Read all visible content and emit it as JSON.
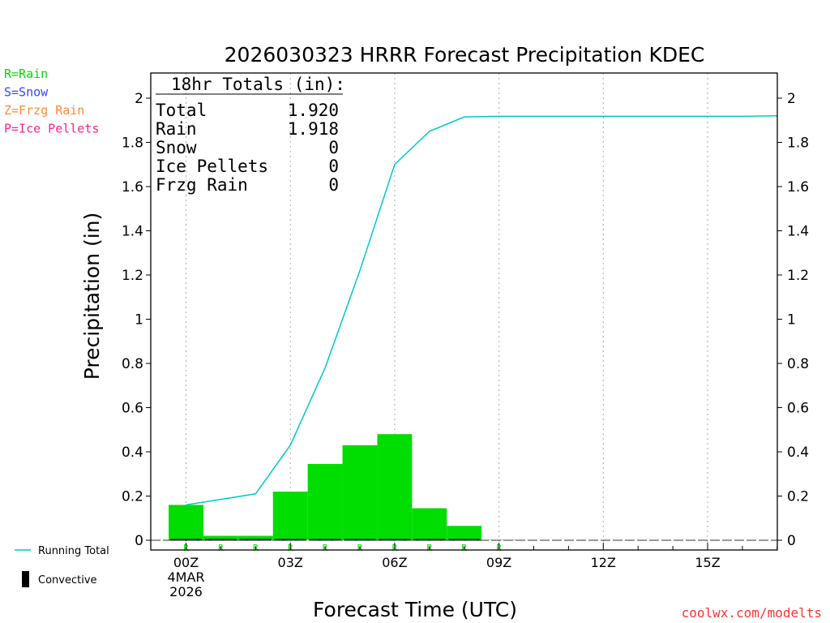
{
  "chart_data": {
    "type": "bar",
    "title": "2026030323 HRRR Forecast Precipitation KDEC",
    "xlabel": "Forecast Time (UTC)",
    "ylabel": "Precipitation (in)",
    "ylim": [
      0,
      2.1
    ],
    "xlim": [
      -1,
      17
    ],
    "y_ticks": [
      0,
      0.2,
      0.4,
      0.6,
      0.8,
      1,
      1.2,
      1.4,
      1.6,
      1.8,
      2
    ],
    "y_tick_labels": [
      "0",
      "0.2",
      "0.4",
      "0.6",
      "0.8",
      "1",
      "1.2",
      "1.4",
      "1.6",
      "1.8",
      "2"
    ],
    "x_ticks": [
      {
        "hour": 0,
        "lines": [
          "00Z",
          "4MAR",
          "2026"
        ]
      },
      {
        "hour": 3,
        "lines": [
          "03Z"
        ]
      },
      {
        "hour": 6,
        "lines": [
          "06Z"
        ]
      },
      {
        "hour": 9,
        "lines": [
          "09Z"
        ]
      },
      {
        "hour": 12,
        "lines": [
          "12Z"
        ]
      },
      {
        "hour": 15,
        "lines": [
          "15Z"
        ]
      }
    ],
    "grid": "vertical dotted at 3-hour ticks",
    "hourly_bars": {
      "x": [
        0,
        1,
        2,
        3,
        4,
        5,
        6,
        7,
        8,
        9
      ],
      "values": [
        0.16,
        0.02,
        0.02,
        0.22,
        0.345,
        0.43,
        0.48,
        0.145,
        0.065,
        0.002
      ],
      "type_codes": [
        "R",
        "R",
        "R",
        "R",
        "R",
        "R",
        "R",
        "R",
        "R",
        "R"
      ],
      "color": "#00dd00"
    },
    "running_total": {
      "name": "Running Total",
      "x": [
        0,
        1,
        2,
        3,
        4,
        5,
        6,
        7,
        8,
        9,
        10,
        11,
        12,
        13,
        14,
        15,
        16,
        17
      ],
      "values": [
        0.16,
        0.185,
        0.21,
        0.43,
        0.78,
        1.22,
        1.7,
        1.85,
        1.915,
        1.918,
        1.918,
        1.918,
        1.918,
        1.918,
        1.918,
        1.918,
        1.918,
        1.92
      ],
      "color": "#00c8c8"
    },
    "convective": {
      "name": "Convective",
      "x": [
        0,
        1,
        2,
        3,
        4,
        5,
        6,
        7,
        8
      ],
      "values": [
        0.002,
        0.002,
        0.002,
        0.002,
        0.002,
        0.002,
        0.002,
        0.002,
        0.002
      ],
      "color": "#000000"
    }
  },
  "totals_box": {
    "heading": "18hr Totals (in):",
    "rows": [
      {
        "label": "Total",
        "value": "1.920"
      },
      {
        "label": "Rain",
        "value": "1.918"
      },
      {
        "label": "Snow",
        "value": "0"
      },
      {
        "label": "Ice Pellets",
        "value": "0"
      },
      {
        "label": "Frzg Rain",
        "value": "0"
      }
    ]
  },
  "type_legend": [
    {
      "text": "R=Rain",
      "color": "#00dd00"
    },
    {
      "text": "S=Snow",
      "color": "#3344ff"
    },
    {
      "text": "Z=Frzg Rain",
      "color": "#ff8833"
    },
    {
      "text": "P=Ice Pellets",
      "color": "#ff2288"
    }
  ],
  "series_legend": [
    {
      "text": "Running Total",
      "kind": "line",
      "color": "#00c8c8"
    },
    {
      "text": "Convective",
      "kind": "bar",
      "color": "#000000"
    }
  ],
  "credit": {
    "text": "coolwx.com/modelts",
    "color": "#ff3333"
  }
}
